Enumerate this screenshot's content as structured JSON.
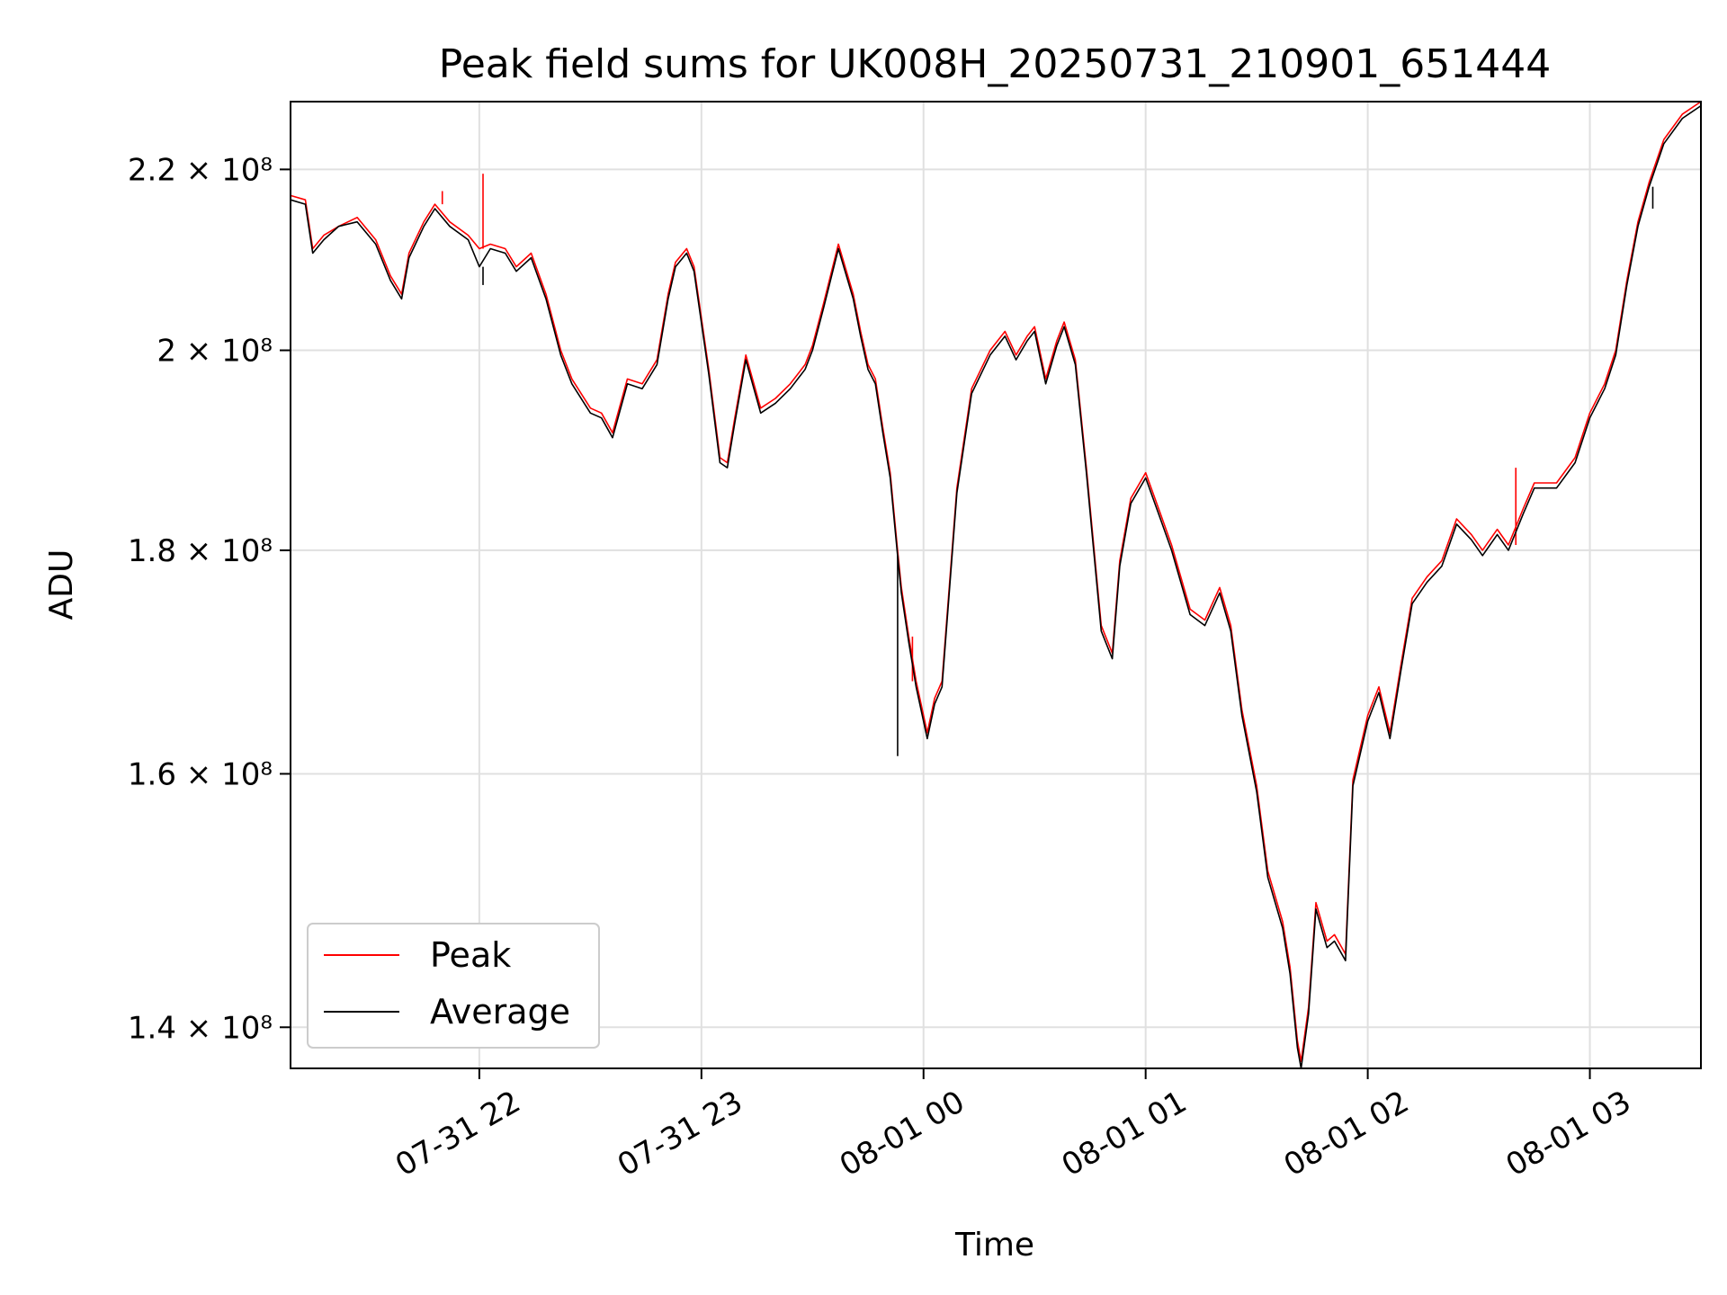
{
  "chart_data": {
    "type": "line",
    "title": "Peak field sums for UK008H_20250731_210901_651444",
    "xlabel": "Time",
    "ylabel": "ADU",
    "y_scale": "log",
    "xlim": [
      "2025-07-31 21:09",
      "2025-08-01 03:30"
    ],
    "ylim": [
      137000000,
      228000000
    ],
    "x_ticks": [
      {
        "value": "2025-07-31 22:00",
        "label": "07-31 22"
      },
      {
        "value": "2025-07-31 23:00",
        "label": "07-31 23"
      },
      {
        "value": "2025-08-01 00:00",
        "label": "08-01 00"
      },
      {
        "value": "2025-08-01 01:00",
        "label": "08-01 01"
      },
      {
        "value": "2025-08-01 02:00",
        "label": "08-01 02"
      },
      {
        "value": "2025-08-01 03:00",
        "label": "08-01 03"
      }
    ],
    "y_ticks": [
      {
        "value": 140000000,
        "label": "1.4 × 10⁸"
      },
      {
        "value": 160000000,
        "label": "1.6 × 10⁸"
      },
      {
        "value": 180000000,
        "label": "1.8 × 10⁸"
      },
      {
        "value": 200000000,
        "label": "2 × 10⁸"
      },
      {
        "value": 220000000,
        "label": "2.2 × 10⁸"
      }
    ],
    "grid": true,
    "legend_position": "lower-left",
    "x": [
      "2025-07-31 21:09",
      "2025-07-31 21:13",
      "2025-07-31 21:15",
      "2025-07-31 21:18",
      "2025-07-31 21:22",
      "2025-07-31 21:27",
      "2025-07-31 21:32",
      "2025-07-31 21:36",
      "2025-07-31 21:39",
      "2025-07-31 21:41",
      "2025-07-31 21:45",
      "2025-07-31 21:48",
      "2025-07-31 21:52",
      "2025-07-31 21:57",
      "2025-07-31 22:00",
      "2025-07-31 22:03",
      "2025-07-31 22:07",
      "2025-07-31 22:10",
      "2025-07-31 22:14",
      "2025-07-31 22:18",
      "2025-07-31 22:22",
      "2025-07-31 22:25",
      "2025-07-31 22:30",
      "2025-07-31 22:33",
      "2025-07-31 22:36",
      "2025-07-31 22:40",
      "2025-07-31 22:44",
      "2025-07-31 22:48",
      "2025-07-31 22:51",
      "2025-07-31 22:53",
      "2025-07-31 22:56",
      "2025-07-31 22:58",
      "2025-07-31 23:02",
      "2025-07-31 23:05",
      "2025-07-31 23:07",
      "2025-07-31 23:09",
      "2025-07-31 23:12",
      "2025-07-31 23:16",
      "2025-07-31 23:20",
      "2025-07-31 23:24",
      "2025-07-31 23:28",
      "2025-07-31 23:30",
      "2025-07-31 23:33",
      "2025-07-31 23:37",
      "2025-07-31 23:41",
      "2025-07-31 23:43",
      "2025-07-31 23:45",
      "2025-07-31 23:47",
      "2025-07-31 23:49",
      "2025-07-31 23:51",
      "2025-07-31 23:53",
      "2025-07-31 23:54",
      "2025-07-31 23:56",
      "2025-07-31 23:58",
      "2025-08-01 00:01",
      "2025-08-01 00:03",
      "2025-08-01 00:05",
      "2025-08-01 00:09",
      "2025-08-01 00:13",
      "2025-08-01 00:18",
      "2025-08-01 00:22",
      "2025-08-01 00:25",
      "2025-08-01 00:28",
      "2025-08-01 00:30",
      "2025-08-01 00:33",
      "2025-08-01 00:36",
      "2025-08-01 00:38",
      "2025-08-01 00:41",
      "2025-08-01 00:44",
      "2025-08-01 00:48",
      "2025-08-01 00:51",
      "2025-08-01 00:53",
      "2025-08-01 00:56",
      "2025-08-01 01:00",
      "2025-08-01 01:04",
      "2025-08-01 01:07",
      "2025-08-01 01:12",
      "2025-08-01 01:16",
      "2025-08-01 01:20",
      "2025-08-01 01:23",
      "2025-08-01 01:26",
      "2025-08-01 01:30",
      "2025-08-01 01:33",
      "2025-08-01 01:37",
      "2025-08-01 01:39",
      "2025-08-01 01:41",
      "2025-08-01 01:42",
      "2025-08-01 01:44",
      "2025-08-01 01:46",
      "2025-08-01 01:49",
      "2025-08-01 01:51",
      "2025-08-01 01:54",
      "2025-08-01 01:56",
      "2025-08-01 02:00",
      "2025-08-01 02:03",
      "2025-08-01 02:06",
      "2025-08-01 02:09",
      "2025-08-01 02:12",
      "2025-08-01 02:16",
      "2025-08-01 02:20",
      "2025-08-01 02:24",
      "2025-08-01 02:28",
      "2025-08-01 02:31",
      "2025-08-01 02:35",
      "2025-08-01 02:38",
      "2025-08-01 02:42",
      "2025-08-01 02:45",
      "2025-08-01 02:51",
      "2025-08-01 02:56",
      "2025-08-01 03:00",
      "2025-08-01 03:04",
      "2025-08-01 03:07",
      "2025-08-01 03:10",
      "2025-08-01 03:13",
      "2025-08-01 03:16",
      "2025-08-01 03:20",
      "2025-08-01 03:25",
      "2025-08-01 03:30"
    ],
    "series": [
      {
        "name": "Peak",
        "color": "#ff0000",
        "values": [
          217000000,
          216500000,
          211000000,
          212500000,
          213500000,
          214500000,
          212000000,
          208000000,
          206000000,
          210500000,
          214000000,
          216000000,
          214000000,
          212500000,
          211000000,
          211500000,
          211000000,
          209000000,
          210500000,
          206000000,
          200000000,
          197000000,
          194000000,
          193500000,
          191500000,
          197000000,
          196500000,
          199000000,
          206000000,
          209500000,
          211000000,
          209000000,
          198000000,
          189000000,
          188500000,
          193000000,
          199500000,
          194000000,
          195000000,
          196500000,
          198500000,
          200500000,
          205000000,
          211500000,
          206000000,
          202000000,
          198500000,
          197000000,
          192000000,
          187500000,
          180000000,
          176500000,
          172000000,
          168000000,
          163500000,
          166500000,
          168000000,
          186000000,
          196000000,
          200000000,
          202000000,
          199500000,
          201500000,
          202500000,
          197000000,
          201000000,
          203000000,
          199000000,
          188000000,
          173000000,
          170500000,
          179000000,
          185000000,
          187500000,
          183500000,
          180500000,
          174500000,
          173500000,
          176500000,
          173000000,
          165500000,
          159000000,
          152000000,
          148000000,
          144500000,
          139000000,
          137500000,
          141500000,
          149500000,
          146500000,
          147000000,
          145500000,
          159500000,
          165000000,
          167500000,
          163500000,
          169500000,
          175500000,
          177500000,
          179000000,
          183000000,
          181500000,
          180000000,
          182000000,
          180500000,
          184000000,
          186500000,
          186500000,
          189000000,
          193500000,
          196500000,
          200000000,
          207500000,
          214000000,
          218500000,
          223500000,
          226500000,
          228000000
        ],
        "spikes": [
          [
            "2025-07-31 21:50",
            217500000
          ],
          [
            "2025-07-31 22:01",
            219500000
          ],
          [
            "2025-07-31 23:57",
            168000000
          ],
          [
            "2025-08-01 02:40",
            188000000
          ]
        ]
      },
      {
        "name": "Average",
        "color": "#000000",
        "values": [
          216500000,
          216000000,
          210500000,
          212000000,
          213500000,
          214000000,
          211500000,
          207500000,
          205500000,
          210000000,
          213500000,
          215500000,
          213500000,
          212000000,
          209000000,
          211000000,
          210500000,
          208500000,
          210000000,
          205500000,
          199500000,
          196500000,
          193500000,
          193000000,
          191000000,
          196500000,
          196000000,
          198500000,
          205500000,
          209000000,
          210500000,
          208500000,
          197500000,
          188500000,
          188000000,
          192500000,
          199000000,
          193500000,
          194500000,
          196000000,
          198000000,
          200000000,
          204500000,
          211000000,
          205500000,
          201500000,
          198000000,
          196500000,
          191500000,
          187000000,
          179500000,
          176000000,
          171500000,
          167500000,
          163000000,
          166000000,
          167500000,
          185500000,
          195500000,
          199500000,
          201500000,
          199000000,
          201000000,
          202000000,
          196500000,
          200500000,
          202500000,
          198500000,
          187500000,
          172500000,
          170000000,
          178500000,
          184500000,
          187000000,
          183000000,
          180000000,
          174000000,
          173000000,
          176000000,
          172500000,
          165000000,
          158500000,
          151500000,
          147500000,
          144000000,
          138500000,
          137000000,
          141000000,
          149000000,
          146000000,
          146500000,
          145000000,
          159000000,
          164500000,
          167000000,
          163000000,
          169000000,
          175000000,
          177000000,
          178500000,
          182500000,
          181000000,
          179500000,
          181500000,
          180000000,
          183500000,
          186000000,
          186000000,
          188500000,
          193000000,
          196000000,
          199500000,
          207000000,
          213500000,
          218000000,
          223000000,
          226000000,
          227500000
        ],
        "spikes": [
          [
            "2025-07-31 21:38",
            205500000
          ],
          [
            "2025-07-31 22:01",
            207000000
          ],
          [
            "2025-07-31 23:53",
            161500000
          ],
          [
            "2025-08-01 03:17",
            215500000
          ]
        ]
      }
    ]
  }
}
